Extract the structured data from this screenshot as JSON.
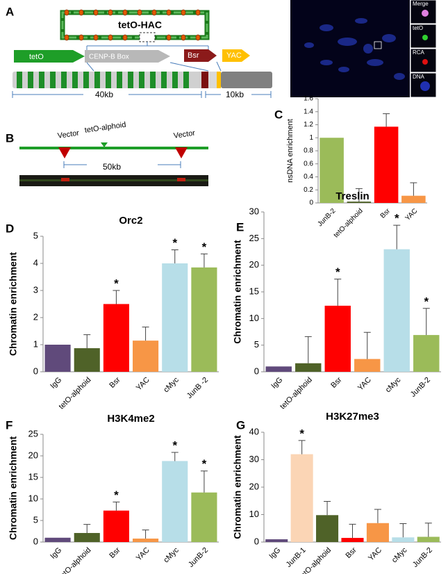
{
  "panels": {
    "A": {
      "label": "A",
      "hac": "tetO-HAC",
      "teto": "tetO",
      "cenpb": "CENP-B Box",
      "bsr": "Bsr",
      "yac": "YAC",
      "scale_left": "40kb",
      "scale_right": "10kb",
      "channels": [
        "Merge",
        "tetO",
        "RCA",
        "DNA"
      ]
    },
    "B": {
      "label": "B",
      "vector_left": "Vector",
      "middle": "tetO-alphoid",
      "vector_right": "Vector",
      "scale": "50kb"
    }
  },
  "chart_data": [
    {
      "type": "bar",
      "panel_label": "C",
      "y_label": "nsDNA enrichment",
      "categories": [
        "JunB-2",
        "tetO-alphoid",
        "Bsr",
        "YAC"
      ],
      "values": [
        1,
        0.02,
        1.17,
        0.11
      ],
      "errors": [
        0,
        0.2,
        0.2,
        0.2
      ],
      "colors": [
        "#9bbb59",
        "#4f6228",
        "#ff0000",
        "#f79646"
      ],
      "ylim": [
        0,
        1.6
      ],
      "yticks": [
        0,
        0.2,
        0.4,
        0.6,
        0.8,
        1,
        1.2,
        1.4,
        1.6
      ]
    },
    {
      "type": "bar",
      "panel_label": "D",
      "title": "Orc2",
      "y_label": "Chromatin enrichment",
      "categories": [
        "IgG",
        "tetO-alphoid",
        "Bsr",
        "YAC",
        "cMyc",
        "JunB -2"
      ],
      "values": [
        1,
        0.87,
        2.5,
        1.15,
        4.0,
        3.85
      ],
      "errors": [
        0,
        0.5,
        0.5,
        0.5,
        0.5,
        0.5
      ],
      "colors": [
        "#604a7b",
        "#4f6228",
        "#ff0000",
        "#f79646",
        "#b7dee8",
        "#9bbb59"
      ],
      "ylim": [
        0,
        5
      ],
      "yticks": [
        0,
        1,
        2,
        3,
        4,
        5
      ],
      "significance_marker": "*",
      "significant": [
        false,
        false,
        true,
        false,
        true,
        true
      ]
    },
    {
      "type": "bar",
      "panel_label": "E",
      "title": "Treslin",
      "y_label": "Chromatin enrichment",
      "categories": [
        "IgG",
        "tetO-alphoid",
        "Bsr",
        "YAC",
        "cMyc",
        "JunB-2"
      ],
      "values": [
        1,
        1.6,
        12.4,
        2.4,
        23,
        6.9
      ],
      "errors": [
        0,
        5,
        5,
        5,
        4.5,
        5
      ],
      "colors": [
        "#604a7b",
        "#4f6228",
        "#ff0000",
        "#f79646",
        "#b7dee8",
        "#9bbb59"
      ],
      "ylim": [
        0,
        30
      ],
      "yticks": [
        0,
        5,
        10,
        15,
        20,
        25,
        30
      ],
      "significance_marker": "*",
      "significant": [
        false,
        false,
        true,
        false,
        true,
        true
      ]
    },
    {
      "type": "bar",
      "panel_label": "F",
      "title": "H3K4me2",
      "y_label": "Chromatin enrichment",
      "categories": [
        "IgG",
        "tetO-alphoid",
        "Bsr",
        "YAC",
        "cMyc",
        "JunB-2"
      ],
      "values": [
        1,
        2.1,
        7.3,
        0.8,
        18.8,
        11.5
      ],
      "errors": [
        0,
        2,
        2,
        2,
        2,
        5
      ],
      "colors": [
        "#604a7b",
        "#4f6228",
        "#ff0000",
        "#f79646",
        "#b7dee8",
        "#9bbb59"
      ],
      "ylim": [
        0,
        25
      ],
      "yticks": [
        0,
        5,
        10,
        15,
        20,
        25
      ],
      "significance_marker": "*",
      "significant": [
        false,
        false,
        true,
        false,
        true,
        true
      ]
    },
    {
      "type": "bar",
      "panel_label": "G",
      "title": "H3K27me3",
      "y_label": "Chromatin enrichment",
      "categories": [
        "IgG",
        "JunB-1",
        "tetO-alphoid",
        "Bsr",
        "YAC",
        "cMyc",
        "JunB-2"
      ],
      "values": [
        1,
        32,
        9.8,
        1.5,
        6.9,
        1.7,
        1.9
      ],
      "errors": [
        0,
        5,
        5,
        5,
        5,
        5,
        5
      ],
      "colors": [
        "#604a7b",
        "#fbd5b5",
        "#4f6228",
        "#ff0000",
        "#f79646",
        "#b7dee8",
        "#9bbb59"
      ],
      "ylim": [
        0,
        40
      ],
      "yticks": [
        0,
        10,
        20,
        30,
        40
      ],
      "significance_marker": "*",
      "significant": [
        false,
        true,
        false,
        false,
        false,
        false,
        false
      ]
    }
  ]
}
